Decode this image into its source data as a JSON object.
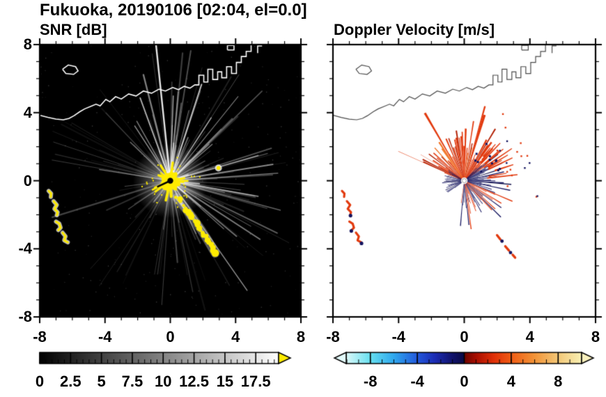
{
  "title": "Fukuoka, 20190106 [02:04, el=0.0]",
  "panels": [
    {
      "id": "snr",
      "label": "SNR [dB]",
      "xtick_labels": [
        "-8",
        "-4",
        "0",
        "4",
        "8"
      ],
      "ytick_labels": [
        "8",
        "4",
        "0",
        "-4",
        "-8"
      ],
      "colorbar_tick_labels": [
        "0",
        "2.5",
        "5",
        "7.5",
        "10",
        "12.5",
        "15",
        "17.5"
      ]
    },
    {
      "id": "velocity",
      "label": "Doppler Velocity [m/s]",
      "xtick_labels": [
        "-8",
        "-4",
        "0",
        "4",
        "8"
      ],
      "colorbar_tick_labels": [
        "-8",
        "-4",
        "0",
        "4",
        "8"
      ]
    }
  ],
  "colors": {
    "snr_background": "#000000",
    "snr_echo_strong": "#ffec00",
    "snr_echo_weak": "#ffffff",
    "snr_over_arrow": "#ffec00",
    "vel_positive": "#e23a0e",
    "vel_negative": "#14145f",
    "vel_under_arrow": "#e4fbfb",
    "vel_over_arrow": "#f9f1bd",
    "coastline_snr": "#ffffff",
    "coastline_vel": "#4a4a4a",
    "axis": "#000000"
  },
  "coastline": {
    "color_snr": "#ffffff",
    "color_vel": "#4a4a4a",
    "segments": [
      [
        [
          -8,
          3.85
        ],
        [
          -7.5,
          3.72
        ],
        [
          -7.0,
          3.62
        ],
        [
          -6.55,
          3.58
        ],
        [
          -6.2,
          3.66
        ],
        [
          -5.9,
          3.82
        ],
        [
          -5.55,
          4.05
        ],
        [
          -5.25,
          4.22
        ],
        [
          -4.85,
          4.38
        ],
        [
          -4.55,
          4.5
        ],
        [
          -4.3,
          4.4
        ],
        [
          -3.95,
          4.78
        ],
        [
          -3.7,
          4.64
        ],
        [
          -3.35,
          4.94
        ],
        [
          -3.0,
          4.8
        ],
        [
          -2.55,
          5.1
        ],
        [
          -2.1,
          4.98
        ],
        [
          -1.65,
          5.27
        ],
        [
          -1.15,
          5.14
        ],
        [
          -0.7,
          5.38
        ],
        [
          -0.3,
          5.27
        ],
        [
          0.15,
          5.48
        ],
        [
          0.5,
          5.35
        ],
        [
          0.85,
          5.55
        ],
        [
          1.2,
          5.44
        ],
        [
          1.5,
          5.63
        ],
        [
          1.75,
          5.63
        ],
        [
          1.75,
          6.2
        ],
        [
          2.05,
          6.2
        ],
        [
          2.05,
          5.8
        ],
        [
          2.3,
          5.8
        ],
        [
          2.3,
          6.55
        ],
        [
          2.6,
          6.55
        ],
        [
          2.6,
          5.95
        ],
        [
          2.9,
          5.95
        ],
        [
          2.9,
          6.4
        ],
        [
          3.15,
          6.4
        ],
        [
          3.15,
          6.05
        ],
        [
          3.45,
          6.05
        ],
        [
          3.45,
          6.7
        ],
        [
          3.75,
          6.7
        ],
        [
          3.75,
          6.3
        ],
        [
          4.05,
          6.3
        ],
        [
          4.05,
          6.95
        ],
        [
          4.35,
          6.95
        ],
        [
          4.35,
          7.3
        ],
        [
          4.65,
          7.3
        ],
        [
          4.65,
          7.6
        ],
        [
          4.95,
          7.6
        ],
        [
          4.95,
          8.05
        ]
      ],
      [
        [
          -6.6,
          6.55
        ],
        [
          -6.25,
          6.8
        ],
        [
          -5.8,
          6.7
        ],
        [
          -5.65,
          6.45
        ],
        [
          -5.92,
          6.25
        ],
        [
          -6.4,
          6.3
        ],
        [
          -6.6,
          6.55
        ]
      ],
      [
        [
          3.5,
          7.68
        ],
        [
          3.5,
          7.95
        ],
        [
          3.9,
          7.95
        ],
        [
          3.9,
          7.68
        ],
        [
          3.5,
          7.68
        ]
      ],
      [
        [
          5.35,
          7.5
        ],
        [
          5.35,
          7.92
        ],
        [
          5.62,
          7.92
        ]
      ]
    ]
  },
  "chart_data": [
    {
      "type": "heatmap",
      "subtype": "radar-ppi",
      "title": "SNR [dB]",
      "xlim": [
        -8,
        8
      ],
      "ylim": [
        -8,
        8
      ],
      "xticks": [
        -8,
        -4,
        0,
        4,
        8
      ],
      "yticks": [
        -8,
        -4,
        0,
        4,
        8
      ],
      "minor_tick_step": 1,
      "background": "#000000",
      "colorbar": {
        "label_values": [
          0,
          2.5,
          5,
          7.5,
          10,
          12.5,
          15,
          17.5
        ],
        "range": [
          0,
          19.35
        ],
        "tick_step": 0.5,
        "major_tick_step": 2.5,
        "over_arrow_color": "#ffec00",
        "stops": [
          {
            "v": 0,
            "color": "#000000"
          },
          {
            "v": 19.35,
            "color": "#ffffff"
          }
        ]
      },
      "features": [
        {
          "name": "center-saturated-echo",
          "x": 0,
          "y": 0,
          "radius_km": 0.7,
          "value": "> 17.5 dB"
        },
        {
          "name": "radial-interference-spokes",
          "description": "white spokes radiating from origin in all directions, brightest toward N-NE and E"
        },
        {
          "name": "clutter-streak-southeast",
          "path": [
            [
              0.4,
              -1.0
            ],
            [
              1.0,
              -1.7
            ],
            [
              1.4,
              -2.2
            ],
            [
              1.9,
              -2.9
            ],
            [
              2.3,
              -3.5
            ],
            [
              2.75,
              -4.25
            ]
          ],
          "value": "> 17.5 dB"
        },
        {
          "name": "west-coast-echoes",
          "points": [
            [
              -7.35,
              -0.75
            ],
            [
              -7.0,
              -1.55
            ],
            [
              -6.85,
              -2.6
            ],
            [
              -6.5,
              -3.3
            ]
          ],
          "value": "> 17.5 dB"
        },
        {
          "name": "isolated-echo",
          "x": 2.95,
          "y": 0.75
        }
      ]
    },
    {
      "type": "heatmap",
      "subtype": "radar-ppi",
      "title": "Doppler Velocity [m/s]",
      "xlim": [
        -8,
        8
      ],
      "ylim": [
        -8,
        8
      ],
      "xticks": [
        -8,
        -4,
        0,
        4,
        8
      ],
      "yticks": [
        -8,
        -4,
        0,
        4,
        8
      ],
      "minor_tick_step": 1,
      "background": "#ffffff",
      "colorbar": {
        "label_values": [
          -8,
          -4,
          0,
          4,
          8
        ],
        "range": [
          -10.06,
          10.0
        ],
        "tick_step": 1,
        "major_tick_step": 4,
        "under_arrow_color": "#e4fbfb",
        "over_arrow_color": "#f9f1bd",
        "stops": [
          {
            "v": -10.06,
            "color": "#dcf8f8"
          },
          {
            "v": -8,
            "color": "#66e0f0"
          },
          {
            "v": -6,
            "color": "#2fa8ee"
          },
          {
            "v": -4,
            "color": "#2258dc"
          },
          {
            "v": -2.5,
            "color": "#1b2cb4"
          },
          {
            "v": -1,
            "color": "#10126a"
          },
          {
            "v": -0.05,
            "color": "#0a0a46"
          },
          {
            "v": 0.05,
            "color": "#6e0500"
          },
          {
            "v": 1,
            "color": "#a80e00"
          },
          {
            "v": 2.5,
            "color": "#e03008"
          },
          {
            "v": 4,
            "color": "#f05c14"
          },
          {
            "v": 6,
            "color": "#f29438"
          },
          {
            "v": 8,
            "color": "#f3c878"
          },
          {
            "v": 10,
            "color": "#f8f0b4"
          }
        ]
      },
      "features": [
        {
          "name": "outbound-red-sector",
          "angles_deg": [
            34,
            158
          ],
          "radius_km": [
            0.3,
            4.5
          ],
          "value": "+1 to +6 m/s"
        },
        {
          "name": "thin-red-ray-west-northwest",
          "angle_deg": 156,
          "radius_km": 4.4
        },
        {
          "name": "inbound-navy-cluster-east",
          "angles_deg": [
            -22,
            46
          ],
          "radius_km": [
            0.4,
            2.4
          ],
          "value": "-4 to -0.5 m/s"
        },
        {
          "name": "inbound-navy-cluster-south",
          "angles_deg": [
            -98,
            -22
          ],
          "radius_km": [
            0.5,
            2.8
          ],
          "value": "-4 to -0.5 m/s"
        },
        {
          "name": "navy-blob-west-of-center",
          "angles_deg": [
            146,
            218
          ],
          "radius_km": [
            0.2,
            1.4
          ]
        },
        {
          "name": "west-coast-echoes",
          "points": [
            [
              -7.35,
              -0.75
            ],
            [
              -7.0,
              -1.55
            ],
            [
              -6.85,
              -2.6
            ],
            [
              -6.5,
              -3.3
            ]
          ]
        },
        {
          "name": "southeast-echoes",
          "points": [
            [
              2.15,
              -3.35
            ],
            [
              2.6,
              -4.0
            ],
            [
              3.05,
              -4.45
            ]
          ]
        }
      ]
    }
  ]
}
